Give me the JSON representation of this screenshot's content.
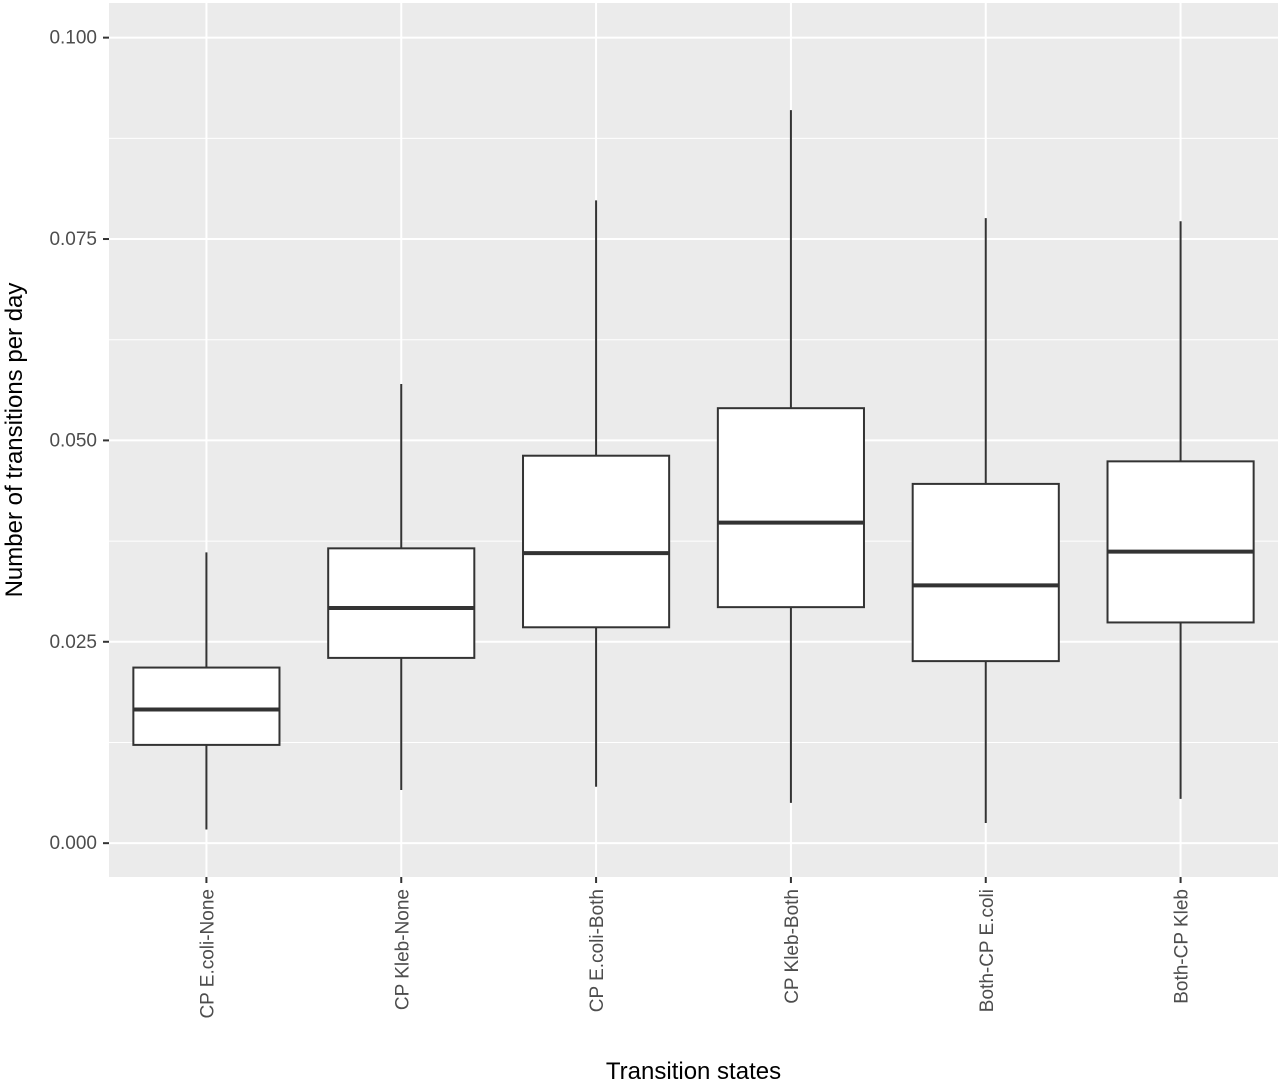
{
  "chart_data": {
    "type": "boxplot",
    "xlabel": "Transition states",
    "ylabel": "Number of transitions per day",
    "ylim": [
      -0.0042,
      0.1043
    ],
    "y_ticks": [
      "0.000",
      "0.025",
      "0.050",
      "0.075",
      "0.100"
    ],
    "y_tick_values": [
      0.0,
      0.025,
      0.05,
      0.075,
      0.1
    ],
    "grid": true,
    "legend": "none",
    "panel_background": "#ebebeb",
    "grid_color": "#ffffff",
    "box_fill": "#ffffff",
    "box_stroke": "#333333",
    "categories": [
      "CP E.coli-None",
      "CP Kleb-None",
      "CP E.coli-Both",
      "CP Kleb-Both",
      "Both-CP E.coli",
      "Both-CP Kleb"
    ],
    "boxes": [
      {
        "min": 0.0017,
        "q1": 0.0122,
        "median": 0.0166,
        "q3": 0.0218,
        "max": 0.0361
      },
      {
        "min": 0.0066,
        "q1": 0.023,
        "median": 0.0292,
        "q3": 0.0366,
        "max": 0.057
      },
      {
        "min": 0.007,
        "q1": 0.0268,
        "median": 0.036,
        "q3": 0.0481,
        "max": 0.0798
      },
      {
        "min": 0.005,
        "q1": 0.0293,
        "median": 0.0398,
        "q3": 0.054,
        "max": 0.091
      },
      {
        "min": 0.0025,
        "q1": 0.0226,
        "median": 0.032,
        "q3": 0.0446,
        "max": 0.0776
      },
      {
        "min": 0.0055,
        "q1": 0.0274,
        "median": 0.0362,
        "q3": 0.0474,
        "max": 0.0772
      }
    ]
  }
}
